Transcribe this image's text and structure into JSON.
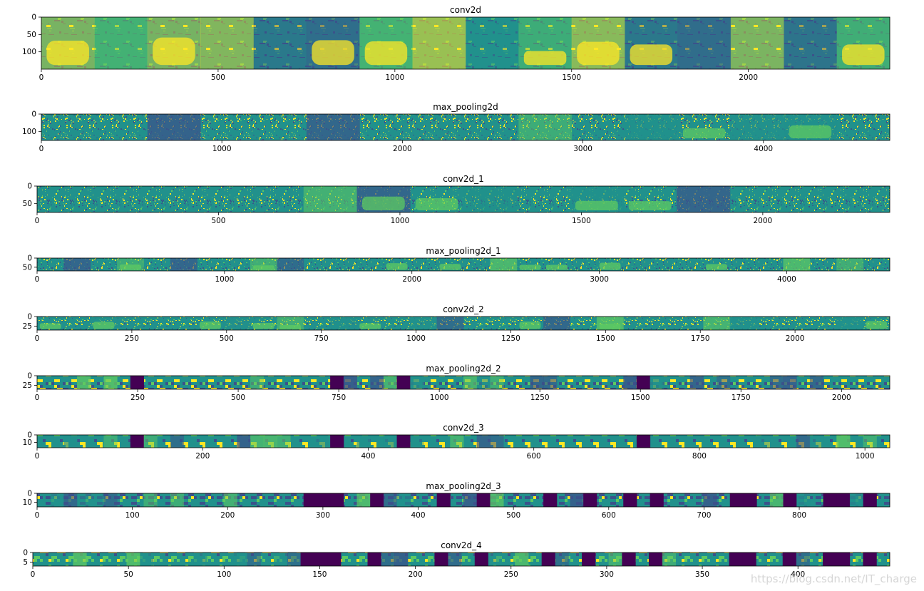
{
  "figure": {
    "watermark": "https://blog.csdn.net/IT_charge"
  },
  "colors": {
    "viridis": [
      "#440154",
      "#3b528b",
      "#21918c",
      "#5ec962",
      "#fde725"
    ],
    "axis": "#000000",
    "background": "#ffffff"
  },
  "chart_data": [
    {
      "type": "heatmap",
      "title": "conv2d",
      "xlim": [
        0,
        2400
      ],
      "ylim": [
        150,
        0
      ],
      "xticks": [
        0,
        500,
        1000,
        1500,
        2000
      ],
      "xtick_labels": [
        "0",
        "500",
        "1000",
        "1500",
        "2000"
      ],
      "yticks": [
        0,
        50,
        100
      ],
      "ytick_labels": [
        "0",
        "50",
        "100"
      ],
      "style": "smooth",
      "tiles": 16,
      "dark_tiles": []
    },
    {
      "type": "heatmap",
      "title": "max_pooling2d",
      "xlim": [
        0,
        4700
      ],
      "ylim": [
        150,
        0
      ],
      "xticks": [
        0,
        1000,
        2000,
        3000,
        4000
      ],
      "xtick_labels": [
        "0",
        "1000",
        "2000",
        "3000",
        "4000"
      ],
      "yticks": [
        0,
        100
      ],
      "ytick_labels": [
        "0",
        "100"
      ],
      "style": "speckle",
      "tiles": 16,
      "dark_tiles": []
    },
    {
      "type": "heatmap",
      "title": "conv2d_1",
      "xlim": [
        0,
        2350
      ],
      "ylim": [
        75,
        0
      ],
      "xticks": [
        0,
        500,
        1000,
        1500,
        2000
      ],
      "xtick_labels": [
        "0",
        "500",
        "1000",
        "1500",
        "2000"
      ],
      "yticks": [
        0,
        50
      ],
      "ytick_labels": [
        "0",
        "50"
      ],
      "style": "speckle",
      "tiles": 16,
      "dark_tiles": []
    },
    {
      "type": "heatmap",
      "title": "max_pooling2d_1",
      "xlim": [
        0,
        4550
      ],
      "ylim": [
        70,
        0
      ],
      "xticks": [
        0,
        1000,
        2000,
        3000,
        4000
      ],
      "xtick_labels": [
        "0",
        "1000",
        "2000",
        "3000",
        "4000"
      ],
      "yticks": [
        0,
        50
      ],
      "ytick_labels": [
        "0",
        "50"
      ],
      "style": "speckle",
      "tiles": 32,
      "dark_tiles": []
    },
    {
      "type": "heatmap",
      "title": "conv2d_2",
      "xlim": [
        0,
        2250
      ],
      "ylim": [
        35,
        0
      ],
      "xticks": [
        0,
        250,
        500,
        750,
        1000,
        1250,
        1500,
        1750,
        2000
      ],
      "xtick_labels": [
        "0",
        "250",
        "500",
        "750",
        "1000",
        "1250",
        "1500",
        "1750",
        "2000"
      ],
      "yticks": [
        0,
        25
      ],
      "ytick_labels": [
        "0",
        "25"
      ],
      "style": "speckle",
      "tiles": 32,
      "dark_tiles": []
    },
    {
      "type": "heatmap",
      "title": "max_pooling2d_2",
      "xlim": [
        0,
        2120
      ],
      "ylim": [
        35,
        0
      ],
      "xticks": [
        0,
        250,
        500,
        750,
        1000,
        1250,
        1500,
        1750,
        2000
      ],
      "xtick_labels": [
        "0",
        "250",
        "500",
        "750",
        "1000",
        "1250",
        "1500",
        "1750",
        "2000"
      ],
      "yticks": [
        0,
        25
      ],
      "ytick_labels": [
        "0",
        "25"
      ],
      "style": "blocky",
      "tiles": 64,
      "dark_tiles": [
        7,
        22,
        27,
        45
      ]
    },
    {
      "type": "heatmap",
      "title": "conv2d_3",
      "xlim": [
        0,
        1030
      ],
      "ylim": [
        17,
        0
      ],
      "xticks": [
        0,
        200,
        400,
        600,
        800,
        1000
      ],
      "xtick_labels": [
        "0",
        "200",
        "400",
        "600",
        "800",
        "1000"
      ],
      "yticks": [
        0,
        10
      ],
      "ytick_labels": [
        "0",
        "10"
      ],
      "style": "blocky",
      "tiles": 64,
      "dark_tiles": [
        7,
        22,
        27,
        45
      ]
    },
    {
      "type": "heatmap",
      "title": "max_pooling2d_3",
      "xlim": [
        0,
        895
      ],
      "ylim": [
        15,
        0
      ],
      "xticks": [
        0,
        100,
        200,
        300,
        400,
        500,
        600,
        700,
        800
      ],
      "xtick_labels": [
        "0",
        "100",
        "200",
        "300",
        "400",
        "500",
        "600",
        "700",
        "800"
      ],
      "yticks": [
        0,
        10
      ],
      "ytick_labels": [
        "0",
        "10"
      ],
      "style": "blocky",
      "tiles": 64,
      "dark_tiles": [
        20,
        21,
        22,
        25,
        30,
        33,
        38,
        41,
        44,
        46,
        52,
        53,
        56,
        59,
        60,
        62
      ]
    },
    {
      "type": "heatmap",
      "title": "conv2d_4",
      "xlim": [
        0,
        448
      ],
      "ylim": [
        7,
        0
      ],
      "xticks": [
        0,
        50,
        100,
        150,
        200,
        250,
        300,
        350,
        400
      ],
      "xtick_labels": [
        "0",
        "50",
        "100",
        "150",
        "200",
        "250",
        "300",
        "350",
        "400"
      ],
      "yticks": [
        0,
        5
      ],
      "ytick_labels": [
        "0",
        "5"
      ],
      "style": "blocky",
      "tiles": 64,
      "dark_tiles": [
        20,
        21,
        22,
        25,
        30,
        33,
        38,
        41,
        44,
        46,
        52,
        53,
        56,
        59,
        60,
        62
      ]
    }
  ]
}
